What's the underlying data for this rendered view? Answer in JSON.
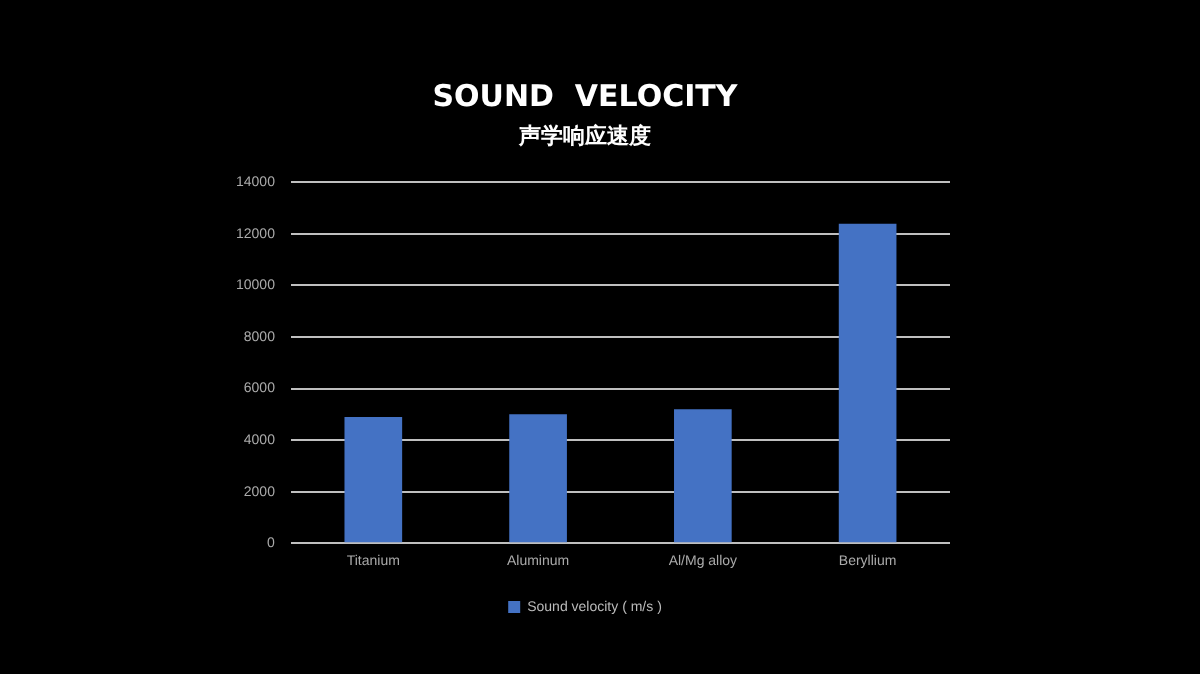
{
  "chart_data": {
    "type": "bar",
    "title": "SOUND  VELOCITY",
    "subtitle": "声学响应速度",
    "categories": [
      "Titanium",
      "Aluminum",
      "Al/Mg alloy",
      "Beryllium"
    ],
    "series": [
      {
        "name": "Sound velocity ( m/s )",
        "color": "#4472c4",
        "values": [
          4900,
          5000,
          5200,
          12400
        ]
      }
    ],
    "ylim": [
      0,
      14000
    ],
    "yticks": [
      0,
      2000,
      4000,
      6000,
      8000,
      10000,
      12000,
      14000
    ],
    "grid": "y",
    "legend": "bottom"
  }
}
